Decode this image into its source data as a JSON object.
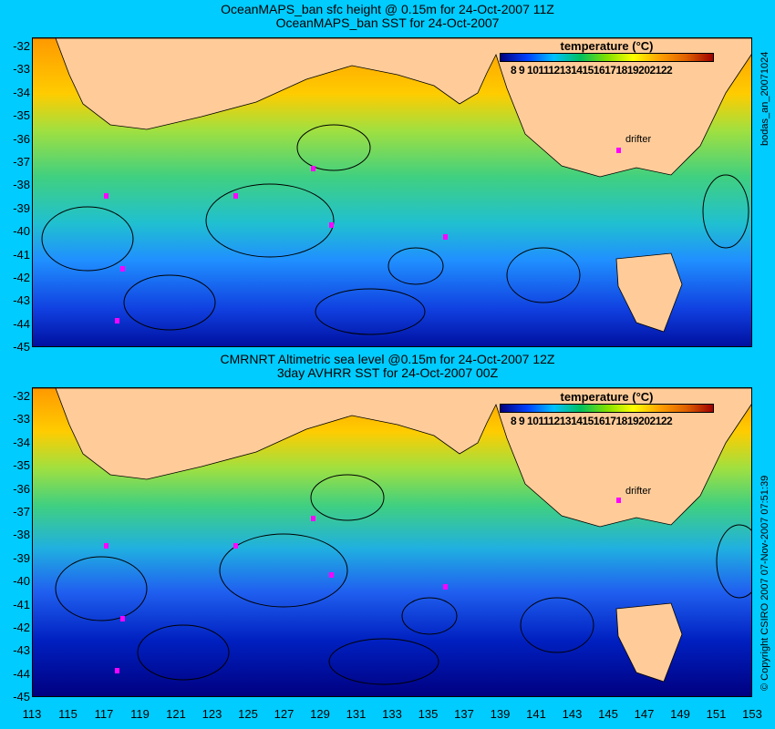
{
  "panels": [
    {
      "title1": "OceanMAPS_ban sfc height @ 0.15m for 24-Oct-2007 11Z",
      "title2": "OceanMAPS_ban SST for 24-Oct-2007",
      "side_text": "bodas_an_20071024",
      "drifter_label": "drifter"
    },
    {
      "title1": "CMRNRT Altimetric sea level  @0.15m  for 24-Oct-2007 12Z",
      "title2": "3day AVHRR SST for 24-Oct-2007 00Z",
      "side_text": "© Copyright CSIRO 2007  07-Nov-2007 07:51:39",
      "drifter_label": "drifter"
    }
  ],
  "legend": {
    "title": "temperature (°C)",
    "ticks": "8  9 10111213141516171819202122",
    "range_c": [
      7,
      23
    ]
  },
  "y_axis": [
    "-32",
    "-33",
    "-34",
    "-35",
    "-36",
    "-37",
    "-38",
    "-39",
    "-40",
    "-41",
    "-42",
    "-43",
    "-44",
    "-45"
  ],
  "x_axis": [
    "113",
    "115",
    "117",
    "119",
    "121",
    "123",
    "125",
    "127",
    "129",
    "131",
    "133",
    "135",
    "137",
    "139",
    "141",
    "143",
    "145",
    "147",
    "149",
    "151",
    "153"
  ],
  "colors": {
    "background": "#00ccff",
    "land": "#ffcc99",
    "drifter": "#ff00ff"
  }
}
